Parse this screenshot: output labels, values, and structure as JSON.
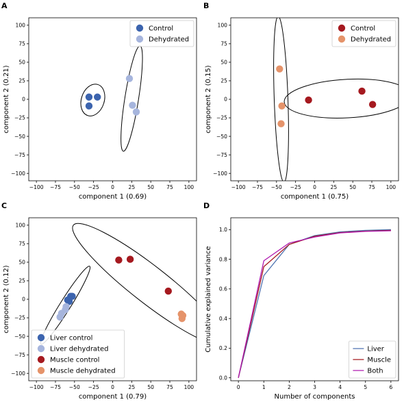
{
  "panels": [
    {
      "letter": "A",
      "chart_data": {
        "type": "scatter",
        "xlabel": "component 1 (0.69)",
        "ylabel": "component 2 (0.21)",
        "xlim": [
          -110,
          110
        ],
        "ylim": [
          -110,
          110
        ],
        "xticks": [
          "−100",
          "−75",
          "−50",
          "−25",
          "0",
          "25",
          "50",
          "75",
          "100"
        ],
        "yticks": [
          "−100",
          "−75",
          "−50",
          "−25",
          "0",
          "25",
          "50",
          "75",
          "100"
        ],
        "legend_position": "upper-right",
        "series": [
          {
            "name": "Control",
            "color": "#3c64ae",
            "points": [
              [
                -31,
                3
              ],
              [
                -20,
                3
              ],
              [
                -31,
                -9
              ]
            ]
          },
          {
            "name": "Dehydrated",
            "color": "#a6b5dd",
            "points": [
              [
                22,
                28
              ],
              [
                26,
                -8
              ],
              [
                31,
                -17
              ]
            ]
          }
        ],
        "ellipses": [
          {
            "cx": -26,
            "cy": -1,
            "rx": 15,
            "ry": 22,
            "rot": 18
          },
          {
            "cx": 25,
            "cy": 1,
            "rx": 9,
            "ry": 72,
            "rot": 9
          }
        ]
      }
    },
    {
      "letter": "B",
      "chart_data": {
        "type": "scatter",
        "xlabel": "component 1 (0.75)",
        "ylabel": "component 2 (0.15)",
        "xlim": [
          -110,
          110
        ],
        "ylim": [
          -110,
          110
        ],
        "xticks": [
          "−100",
          "−75",
          "−50",
          "−25",
          "0",
          "25",
          "50",
          "75",
          "100"
        ],
        "yticks": [
          "−100",
          "−75",
          "−50",
          "−25",
          "0",
          "25",
          "50",
          "75",
          "100"
        ],
        "legend_position": "upper-right",
        "series": [
          {
            "name": "Control",
            "color": "#a5191f",
            "points": [
              [
                -8,
                -1
              ],
              [
                62,
                11
              ],
              [
                76,
                -7
              ]
            ]
          },
          {
            "name": "Dehydrated",
            "color": "#e5936a",
            "points": [
              [
                -46,
                41
              ],
              [
                -43,
                -9
              ],
              [
                -44,
                -33
              ]
            ]
          }
        ],
        "ellipses": [
          {
            "cx": 43,
            "cy": 1,
            "rx": 83,
            "ry": 26,
            "rot": -3
          },
          {
            "cx": -44,
            "cy": 0,
            "rx": 9,
            "ry": 112,
            "rot": -2
          }
        ]
      }
    },
    {
      "letter": "C",
      "chart_data": {
        "type": "scatter",
        "xlabel": "component 1 (0.79)",
        "ylabel": "component 2 (0.12)",
        "xlim": [
          -110,
          110
        ],
        "ylim": [
          -110,
          110
        ],
        "xticks": [
          "−100",
          "−75",
          "−50",
          "−25",
          "0",
          "25",
          "50",
          "75",
          "100"
        ],
        "yticks": [
          "−100",
          "−75",
          "−50",
          "−25",
          "0",
          "25",
          "50",
          "75",
          "100"
        ],
        "legend_position": "lower-left",
        "series": [
          {
            "name": "Liver control",
            "color": "#3c64ae",
            "points": [
              [
                -59,
                -1
              ],
              [
                -55,
                4
              ],
              [
                -53,
                4
              ],
              [
                -57,
                -3
              ]
            ]
          },
          {
            "name": "Liver dehydrated",
            "color": "#a6b5dd",
            "points": [
              [
                -61,
                -10
              ],
              [
                -67,
                -19
              ],
              [
                -69,
                -24
              ],
              [
                -62,
                -14
              ]
            ]
          },
          {
            "name": "Muscle control",
            "color": "#a5191f",
            "points": [
              [
                8,
                53
              ],
              [
                23,
                54
              ],
              [
                73,
                11
              ]
            ]
          },
          {
            "name": "Muscle dehydrated",
            "color": "#e5936a",
            "points": [
              [
                90,
                -20
              ],
              [
                92,
                -22
              ],
              [
                91,
                -26
              ]
            ]
          }
        ],
        "ellipses": [
          {
            "cx": -62,
            "cy": -8,
            "rx": 7,
            "ry": 62,
            "rot": 32
          },
          {
            "cx": 48,
            "cy": 20,
            "rx": 24,
            "ry": 130,
            "rot": -52
          }
        ]
      }
    },
    {
      "letter": "D",
      "chart_data": {
        "type": "line",
        "xlabel": "Number of components",
        "ylabel": "Cumulative explained variance",
        "xlim": [
          -0.3,
          6.3
        ],
        "ylim": [
          -0.02,
          1.08
        ],
        "xticks": [
          "0",
          "1",
          "2",
          "3",
          "4",
          "5",
          "6"
        ],
        "yticks": [
          "0.0",
          "0.2",
          "0.4",
          "0.6",
          "0.8",
          "1.0"
        ],
        "legend_position": "lower-right",
        "x": [
          0,
          1,
          2,
          3,
          4,
          5,
          6
        ],
        "series": [
          {
            "name": "Liver",
            "color": "#4d72b0",
            "values": [
              0,
              0.69,
              0.9,
              0.96,
              0.985,
              0.995,
              1.0
            ]
          },
          {
            "name": "Muscle",
            "color": "#a5191f",
            "values": [
              0,
              0.75,
              0.9,
              0.955,
              0.98,
              0.99,
              0.995
            ]
          },
          {
            "name": "Both",
            "color": "#b01ab0",
            "values": [
              0,
              0.79,
              0.91,
              0.95,
              0.978,
              0.988,
              0.992
            ]
          }
        ]
      }
    }
  ]
}
